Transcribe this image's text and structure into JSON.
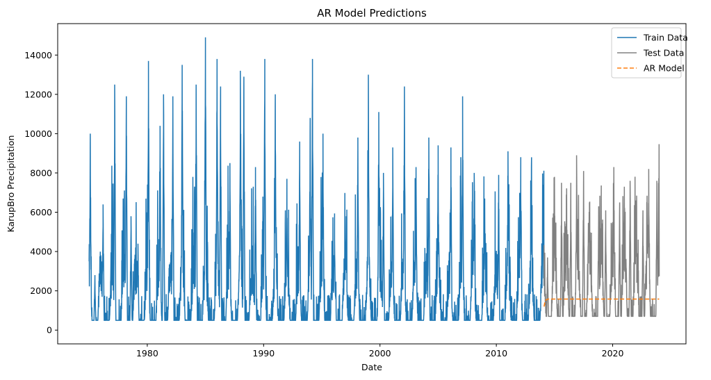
{
  "chart_data": {
    "type": "line",
    "title": "AR Model Predictions",
    "xlabel": "Date",
    "ylabel": "KarupBro Precipitation",
    "xlim": [
      1972.3,
      2026.3
    ],
    "ylim": [
      -700,
      15600
    ],
    "x_ticks": [
      1980,
      1990,
      2000,
      2010,
      2020
    ],
    "y_ticks": [
      0,
      2000,
      4000,
      6000,
      8000,
      10000,
      12000,
      14000
    ],
    "grid": false,
    "legend_position": "top-right",
    "series": [
      {
        "name": "Train Data",
        "color": "#1f77b4",
        "style": "solid",
        "x_start": 1975.0,
        "x_end": 2014.1,
        "peaks": [
          {
            "x": 1975.1,
            "y": 10000
          },
          {
            "x": 1975.5,
            "y": 2800
          },
          {
            "x": 1976.2,
            "y": 6400
          },
          {
            "x": 1977.2,
            "y": 12500
          },
          {
            "x": 1978.2,
            "y": 11900
          },
          {
            "x": 1978.6,
            "y": 5800
          },
          {
            "x": 1979.2,
            "y": 4400
          },
          {
            "x": 1980.1,
            "y": 13700
          },
          {
            "x": 1981.1,
            "y": 10400
          },
          {
            "x": 1981.4,
            "y": 12000
          },
          {
            "x": 1982.2,
            "y": 11900
          },
          {
            "x": 1983.0,
            "y": 13500
          },
          {
            "x": 1984.2,
            "y": 12500
          },
          {
            "x": 1985.0,
            "y": 14900
          },
          {
            "x": 1986.0,
            "y": 13800
          },
          {
            "x": 1986.3,
            "y": 12400
          },
          {
            "x": 1987.1,
            "y": 8500
          },
          {
            "x": 1988.0,
            "y": 13200
          },
          {
            "x": 1988.3,
            "y": 12900
          },
          {
            "x": 1989.3,
            "y": 8300
          },
          {
            "x": 1990.1,
            "y": 13800
          },
          {
            "x": 1991.0,
            "y": 12000
          },
          {
            "x": 1992.0,
            "y": 7700
          },
          {
            "x": 1993.1,
            "y": 9600
          },
          {
            "x": 1994.0,
            "y": 10800
          },
          {
            "x": 1994.2,
            "y": 13800
          },
          {
            "x": 1995.1,
            "y": 10000
          },
          {
            "x": 1996.1,
            "y": 4600
          },
          {
            "x": 1997.1,
            "y": 5800
          },
          {
            "x": 1998.1,
            "y": 9800
          },
          {
            "x": 1999.0,
            "y": 13000
          },
          {
            "x": 1999.9,
            "y": 11100
          },
          {
            "x": 2000.3,
            "y": 8000
          },
          {
            "x": 2001.1,
            "y": 9300
          },
          {
            "x": 2002.1,
            "y": 12400
          },
          {
            "x": 2003.1,
            "y": 8300
          },
          {
            "x": 2004.2,
            "y": 9800
          },
          {
            "x": 2005.0,
            "y": 9400
          },
          {
            "x": 2006.1,
            "y": 9300
          },
          {
            "x": 2007.1,
            "y": 11900
          },
          {
            "x": 2008.1,
            "y": 8000
          },
          {
            "x": 2009.0,
            "y": 6700
          },
          {
            "x": 2010.2,
            "y": 7900
          },
          {
            "x": 2011.0,
            "y": 9100
          },
          {
            "x": 2012.1,
            "y": 8800
          },
          {
            "x": 2013.0,
            "y": 7200
          },
          {
            "x": 2014.0,
            "y": 7400
          }
        ]
      },
      {
        "name": "Test Data",
        "color": "#808080",
        "style": "solid",
        "x_start": 2014.1,
        "x_end": 2024.0,
        "peaks": [
          {
            "x": 2014.4,
            "y": 3700
          },
          {
            "x": 2015.0,
            "y": 7800
          },
          {
            "x": 2015.6,
            "y": 7500
          },
          {
            "x": 2016.4,
            "y": 7500
          },
          {
            "x": 2016.9,
            "y": 8900
          },
          {
            "x": 2017.5,
            "y": 8100
          },
          {
            "x": 2018.0,
            "y": 6500
          },
          {
            "x": 2018.8,
            "y": 6300
          },
          {
            "x": 2019.4,
            "y": 6100
          },
          {
            "x": 2020.1,
            "y": 8300
          },
          {
            "x": 2020.6,
            "y": 6500
          },
          {
            "x": 2021.0,
            "y": 7300
          },
          {
            "x": 2021.5,
            "y": 7600
          },
          {
            "x": 2022.0,
            "y": 6600
          },
          {
            "x": 2022.6,
            "y": 6100
          },
          {
            "x": 2023.1,
            "y": 8200
          },
          {
            "x": 2023.8,
            "y": 7600
          }
        ]
      },
      {
        "name": "AR Model",
        "color": "#ff7f0e",
        "style": "dashed",
        "x": [
          2014.1,
          2014.2,
          2014.4,
          2024.0
        ],
        "y": [
          1200,
          1500,
          1580,
          1580
        ]
      }
    ]
  }
}
